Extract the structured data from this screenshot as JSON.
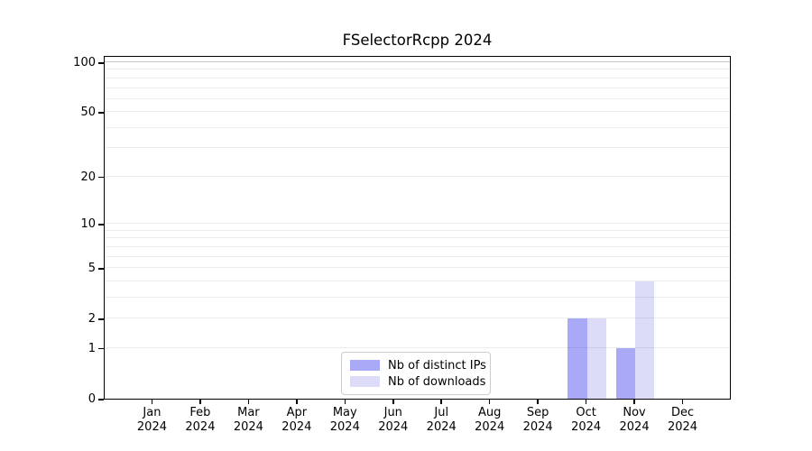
{
  "chart_data": {
    "type": "bar",
    "title": "FSelectorRcpp 2024",
    "categories": [
      "Jan",
      "Feb",
      "Mar",
      "Apr",
      "May",
      "Jun",
      "Jul",
      "Aug",
      "Sep",
      "Oct",
      "Nov",
      "Dec"
    ],
    "category_year": "2024",
    "series": [
      {
        "name": "Nb of distinct IPs",
        "color": "#a9a9f8",
        "values": [
          0,
          0,
          0,
          0,
          0,
          0,
          0,
          0,
          0,
          2,
          1,
          0
        ]
      },
      {
        "name": "Nb of downloads",
        "color": "#dcdcf8",
        "values": [
          0,
          0,
          0,
          0,
          0,
          0,
          0,
          0,
          0,
          2,
          4,
          0
        ]
      }
    ],
    "yscale": "log1p",
    "ylim": [
      0,
      111
    ],
    "ytick_labels": [
      0,
      1,
      2,
      5,
      10,
      20,
      50,
      100
    ],
    "minor_gridlines": [
      1,
      2,
      3,
      4,
      5,
      6,
      7,
      8,
      9,
      10,
      20,
      30,
      40,
      50,
      60,
      70,
      80,
      90
    ],
    "emphasized_gridline": 100,
    "grid": true,
    "legend_position": "bottom-center",
    "colors": {
      "grid_minor": "rgba(0,0,0,0.07)",
      "grid_emphasized": "rgba(0,0,0,0.22)",
      "spine": "#000000",
      "background": "#ffffff"
    }
  }
}
